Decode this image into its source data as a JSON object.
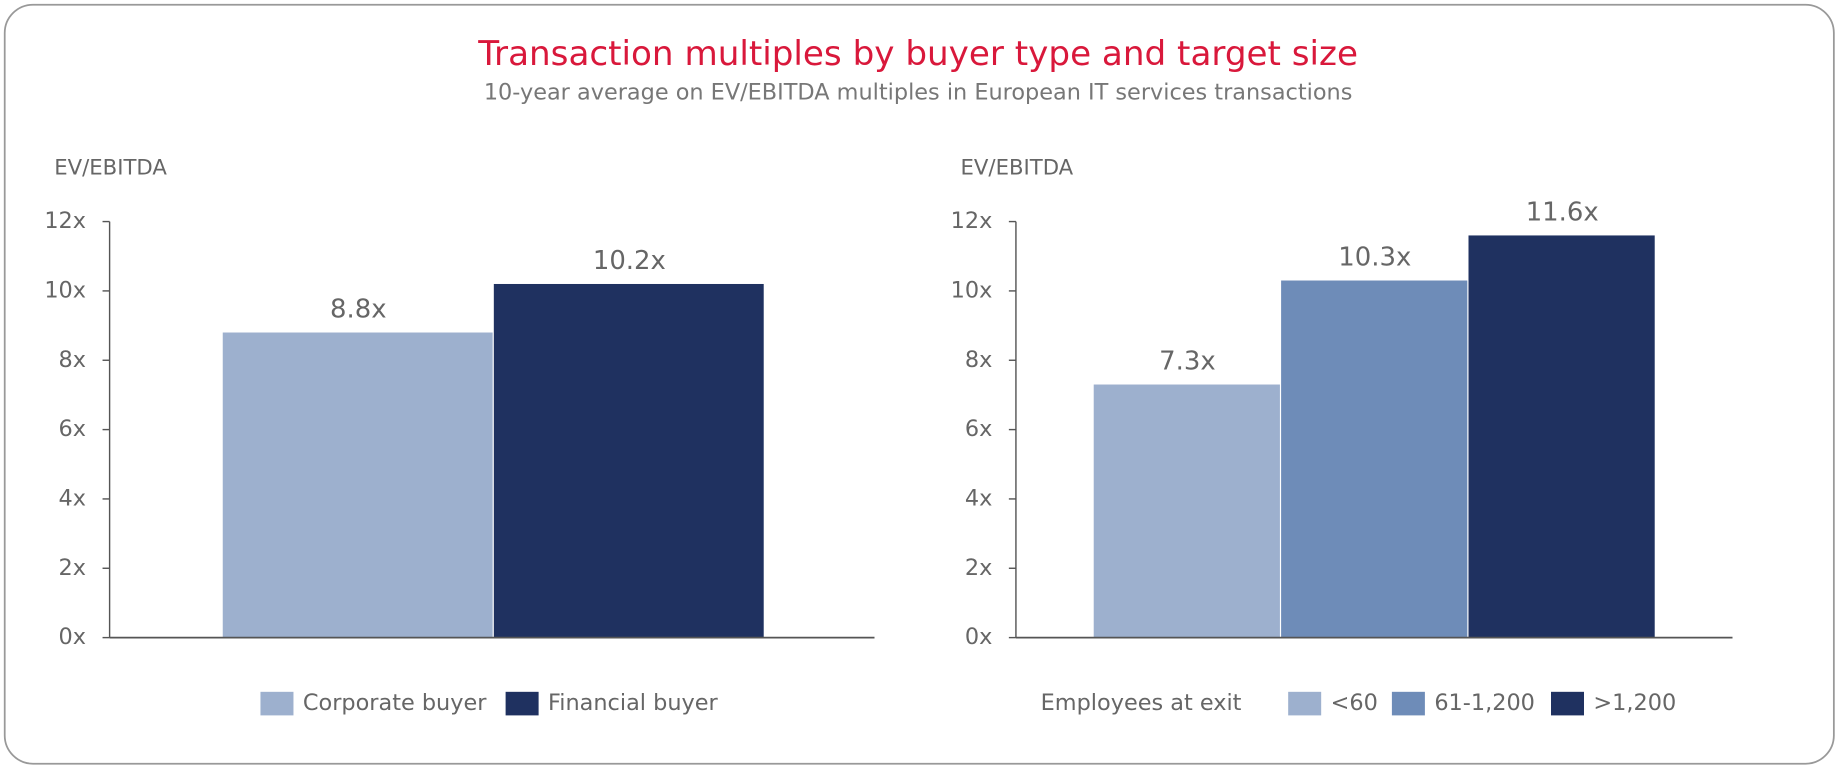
{
  "title": "Transaction multiples by buyer type and target size",
  "subtitle": "10-year average on EV/EBITDA multiples in European IT services transactions",
  "chart_data": [
    {
      "type": "bar",
      "ylabel": "EV/EBITDA",
      "ylim": [
        0,
        12
      ],
      "yticks": [
        {
          "value": 0,
          "label": "0x"
        },
        {
          "value": 2,
          "label": "2x"
        },
        {
          "value": 4,
          "label": "4x"
        },
        {
          "value": 6,
          "label": "6x"
        },
        {
          "value": 8,
          "label": "8x"
        },
        {
          "value": 10,
          "label": "10x"
        },
        {
          "value": 12,
          "label": "12x"
        }
      ],
      "series": [
        {
          "name": "Corporate buyer",
          "color": "#9db0ce",
          "values": [
            8.8
          ],
          "value_labels": [
            "8.8x"
          ]
        },
        {
          "name": "Financial buyer",
          "color": "#1f3160",
          "values": [
            10.2
          ],
          "value_labels": [
            "10.2x"
          ]
        }
      ]
    },
    {
      "type": "bar",
      "ylabel": "EV/EBITDA",
      "legend_title": "Employees at exit",
      "ylim": [
        0,
        12
      ],
      "yticks": [
        {
          "value": 0,
          "label": "0x"
        },
        {
          "value": 2,
          "label": "2x"
        },
        {
          "value": 4,
          "label": "4x"
        },
        {
          "value": 6,
          "label": "6x"
        },
        {
          "value": 8,
          "label": "8x"
        },
        {
          "value": 10,
          "label": "10x"
        },
        {
          "value": 12,
          "label": "12x"
        }
      ],
      "series": [
        {
          "name": "<60",
          "color": "#9db0ce",
          "values": [
            7.3
          ],
          "value_labels": [
            "7.3x"
          ]
        },
        {
          "name": "61-1,200",
          "color": "#6e8cb8",
          "values": [
            10.3
          ],
          "value_labels": [
            "10.3x"
          ]
        },
        {
          "name": ">1,200",
          "color": "#1f3160",
          "values": [
            11.6
          ],
          "value_labels": [
            "11.6x"
          ]
        }
      ]
    }
  ]
}
